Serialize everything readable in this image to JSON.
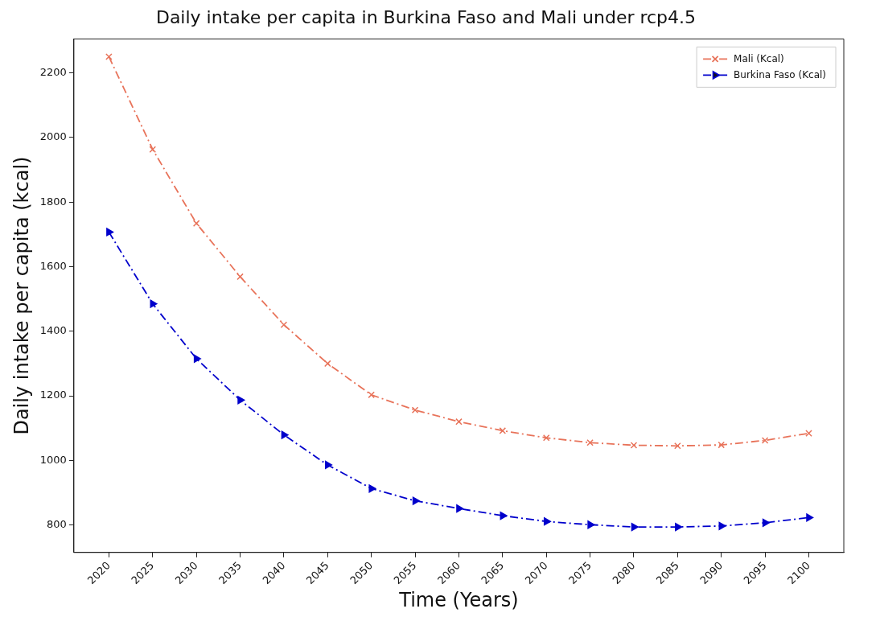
{
  "chart_data": {
    "type": "line",
    "title": "Daily intake per capita in Burkina Faso and Mali under rcp4.5",
    "xlabel": "Time (Years)",
    "ylabel": "Daily intake per capita (kcal)",
    "x": [
      2020,
      2025,
      2030,
      2035,
      2040,
      2045,
      2050,
      2055,
      2060,
      2065,
      2070,
      2075,
      2080,
      2085,
      2090,
      2095,
      2100
    ],
    "series": [
      {
        "name": "Mali (Kcal)",
        "color": "#e8735a",
        "marker": "cross",
        "values": [
          2250,
          1963,
          1734,
          1569,
          1420,
          1300,
          1203,
          1156,
          1120,
          1092,
          1070,
          1055,
          1047,
          1045,
          1048,
          1062,
          1084
        ]
      },
      {
        "name": "Burkina Faso (Kcal)",
        "color": "#0000cc",
        "marker": "triangle",
        "values": [
          1707,
          1485,
          1315,
          1187,
          1079,
          986,
          913,
          875,
          851,
          829,
          811,
          801,
          794,
          794,
          797,
          807,
          823
        ]
      }
    ],
    "xlim": [
      2016,
      2104
    ],
    "xticks": [
      2020,
      2025,
      2030,
      2035,
      2040,
      2045,
      2050,
      2055,
      2060,
      2065,
      2070,
      2075,
      2080,
      2085,
      2090,
      2095,
      2100
    ],
    "ylim": [
      715,
      2305
    ],
    "yticks": [
      800,
      1000,
      1200,
      1400,
      1600,
      1800,
      2000,
      2200
    ],
    "grid": false,
    "legend": "top right",
    "line_style": "dashed"
  }
}
